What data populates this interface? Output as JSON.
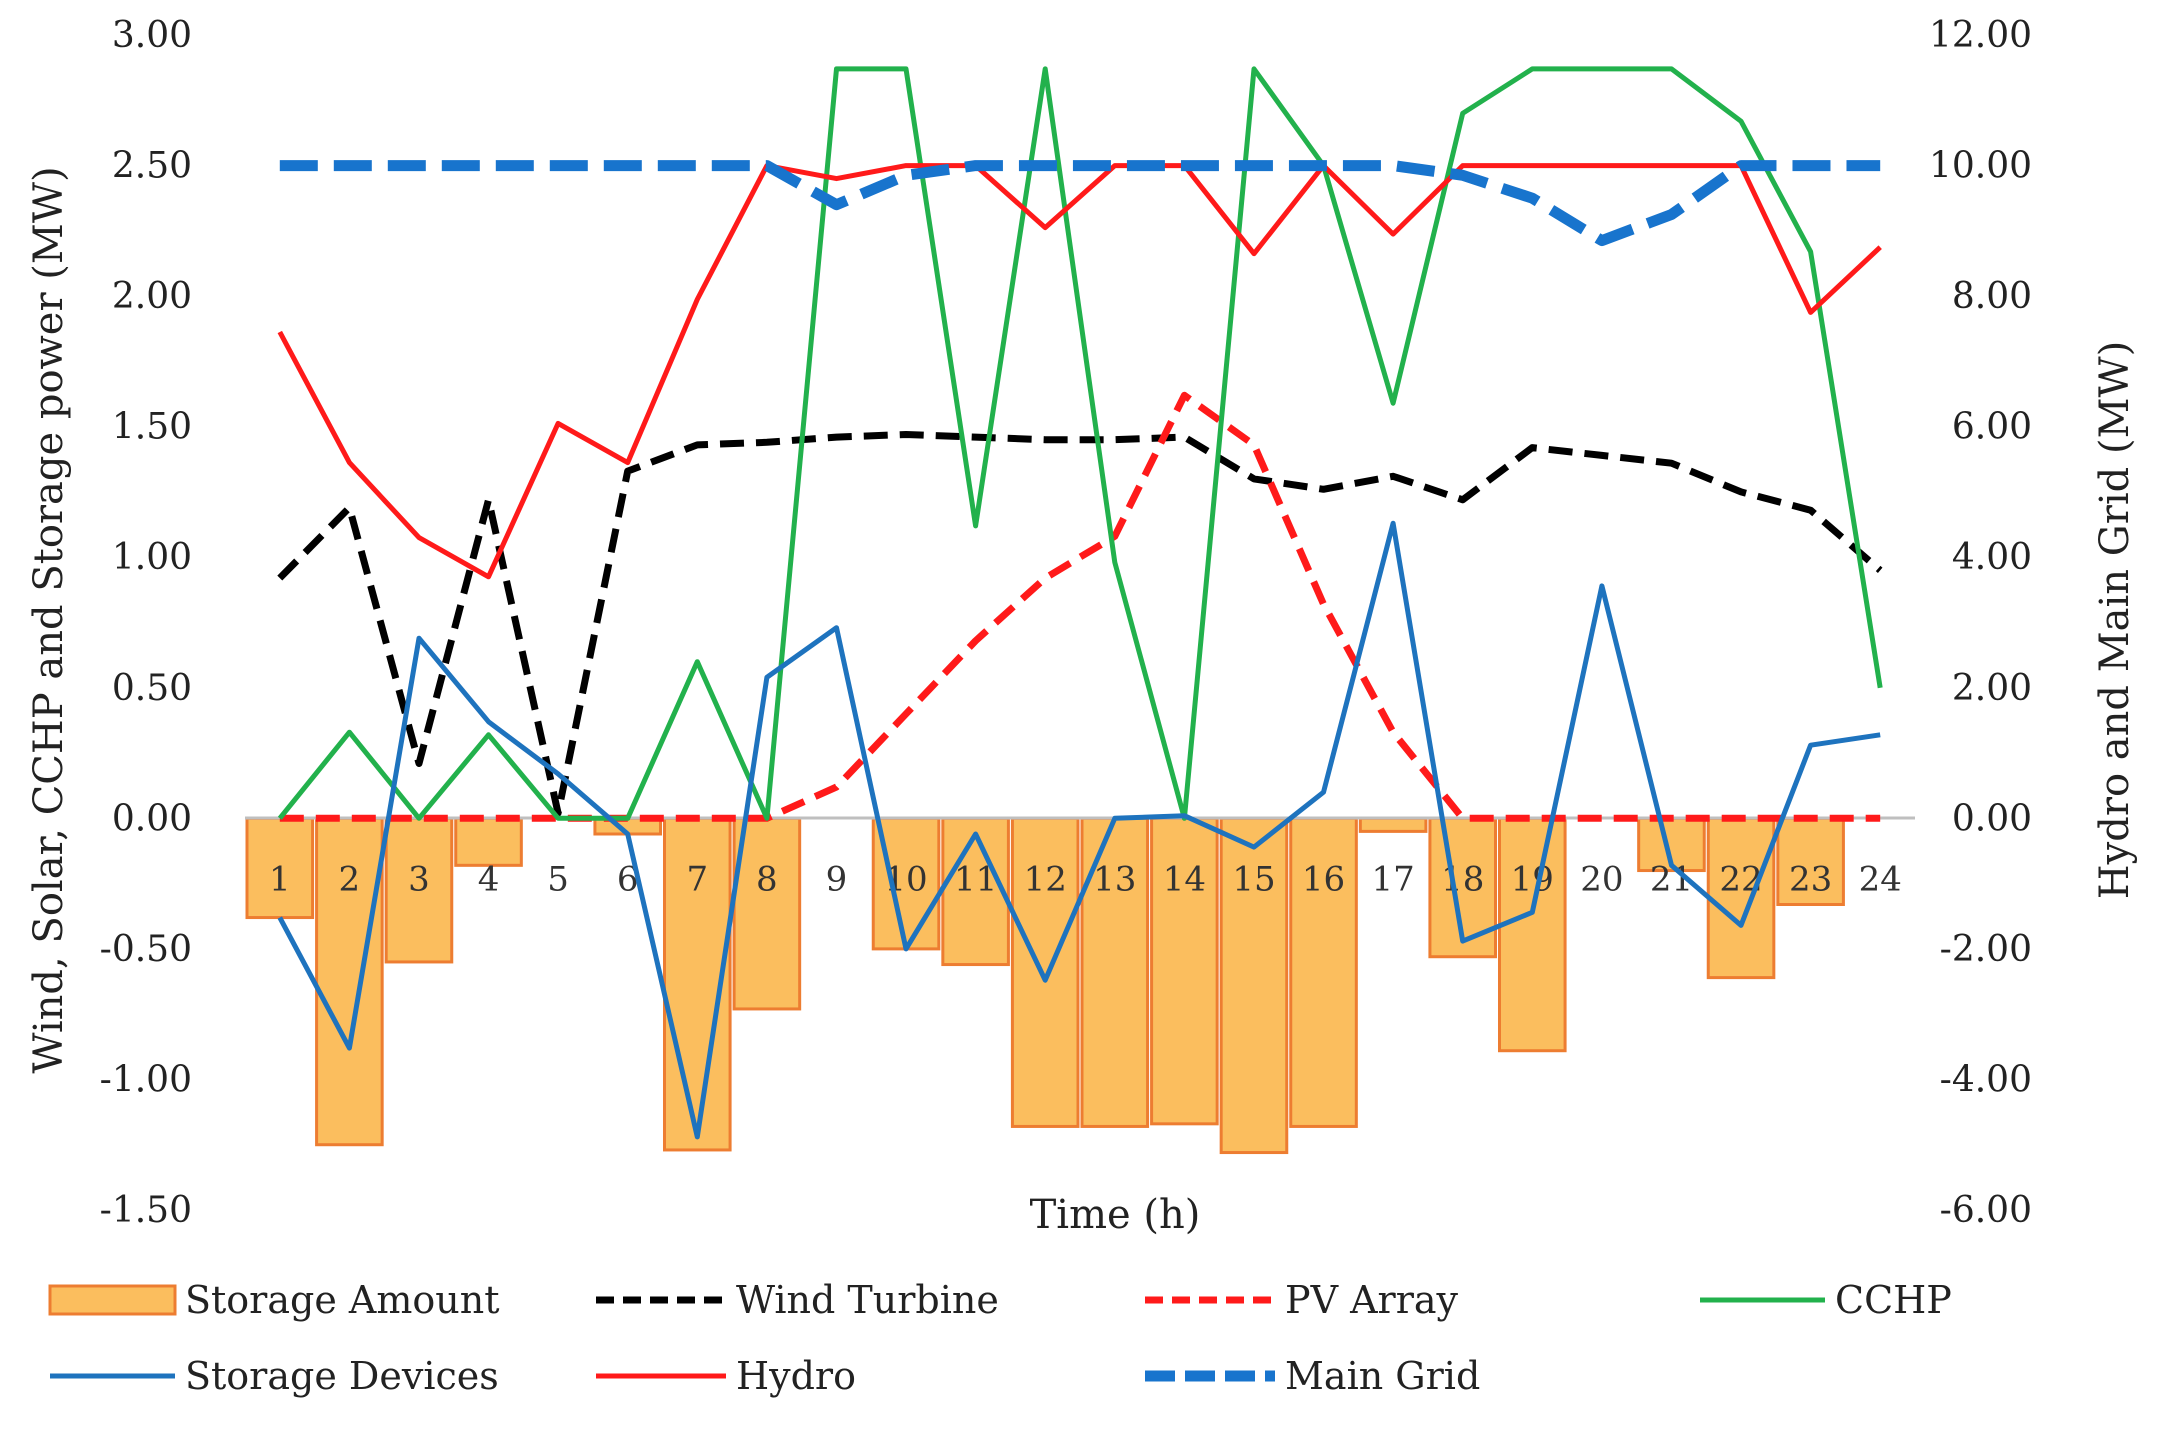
{
  "chart_data": {
    "type": "bar+line",
    "title": "",
    "xlabel": "Time (h)",
    "ylabel_left": "Wind, Solar, CCHP and Storage power (MW)",
    "ylabel_right": "Hydro and Main Grid (MW)",
    "ylim_left": [
      -1.5,
      3.0
    ],
    "ylim_right": [
      -6.0,
      12.0
    ],
    "yticks_left": [
      "3.00",
      "2.50",
      "2.00",
      "1.50",
      "1.00",
      "0.50",
      "0.00",
      "-0.50",
      "-1.00",
      "-1.50"
    ],
    "yticks_right": [
      "12.00",
      "10.00",
      "8.00",
      "6.00",
      "4.00",
      "2.00",
      "0.00",
      "-2.00",
      "-4.00",
      "-6.00"
    ],
    "categories": [
      "1",
      "2",
      "3",
      "4",
      "5",
      "6",
      "7",
      "8",
      "9",
      "10",
      "11",
      "12",
      "13",
      "14",
      "15",
      "16",
      "17",
      "18",
      "19",
      "20",
      "21",
      "22",
      "23",
      "24"
    ],
    "grid": false,
    "legend_position": "bottom",
    "series": [
      {
        "name": "Storage Amount",
        "kind": "bar",
        "axis": "left",
        "color": "#FBBE5E",
        "edge": "#ED7D31",
        "values": [
          -0.38,
          -1.25,
          -0.55,
          -0.18,
          0.0,
          -0.06,
          -1.27,
          -0.73,
          0.0,
          -0.5,
          -0.56,
          -1.18,
          -1.18,
          -1.17,
          -1.28,
          -1.18,
          -0.05,
          -0.53,
          -0.89,
          0.0,
          -0.2,
          -0.61,
          -0.33,
          0.0
        ]
      },
      {
        "name": "Wind Turbine",
        "kind": "line",
        "axis": "left",
        "color": "#000000",
        "dash": "dash",
        "values": [
          0.92,
          1.19,
          0.21,
          1.22,
          0.02,
          1.33,
          1.43,
          1.44,
          1.46,
          1.47,
          1.46,
          1.45,
          1.45,
          1.46,
          1.3,
          1.26,
          1.31,
          1.22,
          1.42,
          1.39,
          1.36,
          1.25,
          1.18,
          0.95
        ]
      },
      {
        "name": "PV Array",
        "kind": "line",
        "axis": "left",
        "color": "#FF1A1A",
        "dash": "dash",
        "values": [
          0.0,
          0.0,
          0.0,
          0.0,
          0.0,
          0.0,
          0.0,
          0.0,
          0.12,
          0.4,
          0.68,
          0.92,
          1.08,
          1.62,
          1.43,
          0.82,
          0.33,
          0.0,
          0.0,
          0.0,
          0.0,
          0.0,
          0.0,
          0.0
        ]
      },
      {
        "name": "CCHP",
        "kind": "line",
        "axis": "left",
        "color": "#22B14C",
        "dash": "solid",
        "values": [
          0.0,
          0.33,
          0.0,
          0.32,
          0.0,
          0.0,
          0.6,
          0.0,
          2.87,
          2.87,
          1.12,
          2.87,
          0.98,
          0.0,
          2.87,
          2.5,
          1.59,
          2.7,
          2.87,
          2.87,
          2.87,
          2.67,
          2.17,
          0.5
        ]
      },
      {
        "name": "Storage Devices",
        "kind": "line",
        "axis": "left",
        "color": "#1E73BE",
        "dash": "solid",
        "values": [
          -0.38,
          -0.88,
          0.69,
          0.37,
          0.17,
          -0.06,
          -1.22,
          0.54,
          0.73,
          -0.5,
          -0.06,
          -0.62,
          0.0,
          0.01,
          -0.11,
          0.1,
          1.13,
          -0.47,
          -0.36,
          0.89,
          -0.18,
          -0.41,
          0.28,
          0.32
        ]
      },
      {
        "name": "Hydro",
        "kind": "line",
        "axis": "right",
        "color": "#FF1A1A",
        "dash": "solid",
        "values": [
          7.45,
          5.45,
          4.3,
          3.7,
          6.05,
          5.45,
          7.95,
          10.0,
          9.8,
          10.0,
          10.0,
          9.05,
          10.0,
          10.0,
          8.65,
          10.0,
          8.95,
          10.0,
          10.0,
          10.0,
          10.0,
          10.0,
          7.75,
          8.75
        ]
      },
      {
        "name": "Main Grid",
        "kind": "line",
        "axis": "right",
        "color": "#1874CD",
        "dash": "bigdash",
        "values": [
          10.0,
          10.0,
          10.0,
          10.0,
          10.0,
          10.0,
          10.0,
          10.0,
          9.4,
          9.85,
          10.0,
          10.0,
          10.0,
          10.0,
          10.0,
          10.0,
          10.0,
          9.85,
          9.5,
          8.85,
          9.25,
          10.0,
          10.0,
          10.0
        ]
      }
    ]
  }
}
